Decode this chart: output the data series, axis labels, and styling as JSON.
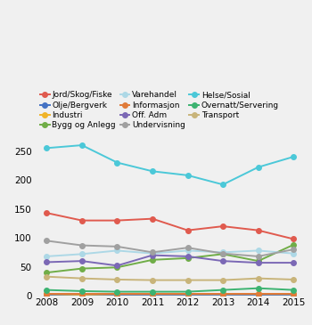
{
  "years": [
    2008,
    2009,
    2010,
    2011,
    2012,
    2013,
    2014,
    2015
  ],
  "series": [
    {
      "label": "Jord/Skog/Fiske",
      "color": "#e05a4e",
      "values": [
        143,
        130,
        130,
        133,
        113,
        120,
        113,
        98
      ]
    },
    {
      "label": "Olje/Bergverk",
      "color": "#4472c4",
      "values": [
        2,
        2,
        2,
        2,
        2,
        2,
        2,
        2
      ]
    },
    {
      "label": "Industri",
      "color": "#f0b429",
      "values": [
        3,
        2,
        3,
        3,
        3,
        3,
        3,
        3
      ]
    },
    {
      "label": "Bygg og Anlegg",
      "color": "#70ad47",
      "values": [
        40,
        47,
        49,
        62,
        65,
        72,
        60,
        88
      ]
    },
    {
      "label": "Varehandel",
      "color": "#add8e6",
      "values": [
        68,
        72,
        78,
        73,
        78,
        75,
        78,
        73
      ]
    },
    {
      "label": "Informasjon",
      "color": "#e07b39",
      "values": [
        3,
        3,
        3,
        3,
        3,
        3,
        3,
        3
      ]
    },
    {
      "label": "Off. Adm",
      "color": "#7b68b5",
      "values": [
        58,
        60,
        52,
        70,
        68,
        60,
        57,
        57
      ]
    },
    {
      "label": "Undervisning",
      "color": "#a0a0a0",
      "values": [
        95,
        87,
        85,
        75,
        83,
        73,
        68,
        80
      ]
    },
    {
      "label": "Helse/Sosial",
      "color": "#4bc8d8",
      "values": [
        255,
        260,
        230,
        215,
        208,
        192,
        222,
        240
      ]
    },
    {
      "label": "Overnatt/Servering",
      "color": "#3cb371",
      "values": [
        10,
        8,
        7,
        7,
        7,
        10,
        13,
        10
      ]
    },
    {
      "label": "Transport",
      "color": "#c8b47a",
      "values": [
        33,
        30,
        28,
        27,
        27,
        27,
        30,
        28
      ]
    }
  ],
  "ylim": [
    0,
    275
  ],
  "yticks": [
    0,
    50,
    100,
    150,
    200,
    250
  ],
  "background_color": "#f0f0f0",
  "legend_fontsize": 6.5,
  "tick_fontsize": 7.5,
  "marker": "o",
  "markersize": 4,
  "linewidth": 1.4
}
